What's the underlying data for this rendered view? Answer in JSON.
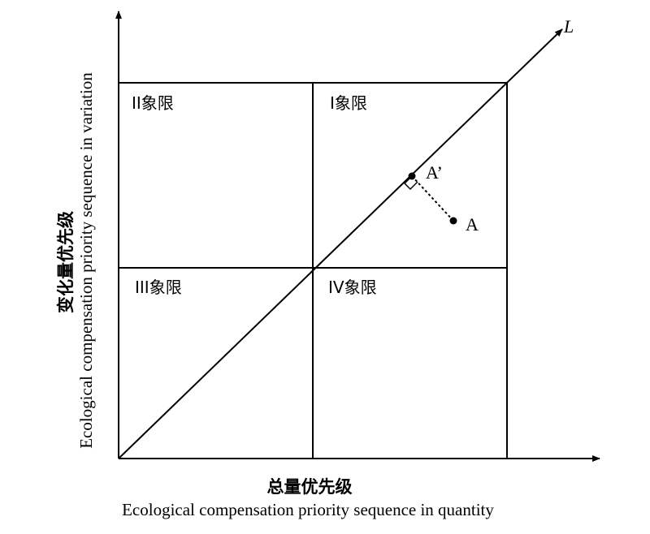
{
  "x_axis": {
    "label_cn": "总量优先级",
    "label_en": "Ecological compensation priority sequence in quantity"
  },
  "y_axis": {
    "label_cn": "变化量优先级",
    "label_en": "Ecological compensation priority sequence in variation"
  },
  "line": {
    "label": "L"
  },
  "quadrants": {
    "q1": "I象限",
    "q2": "II象限",
    "q3": "III象限",
    "q4": "IV象限"
  },
  "points": {
    "a": "A",
    "a_prime": "A’"
  }
}
